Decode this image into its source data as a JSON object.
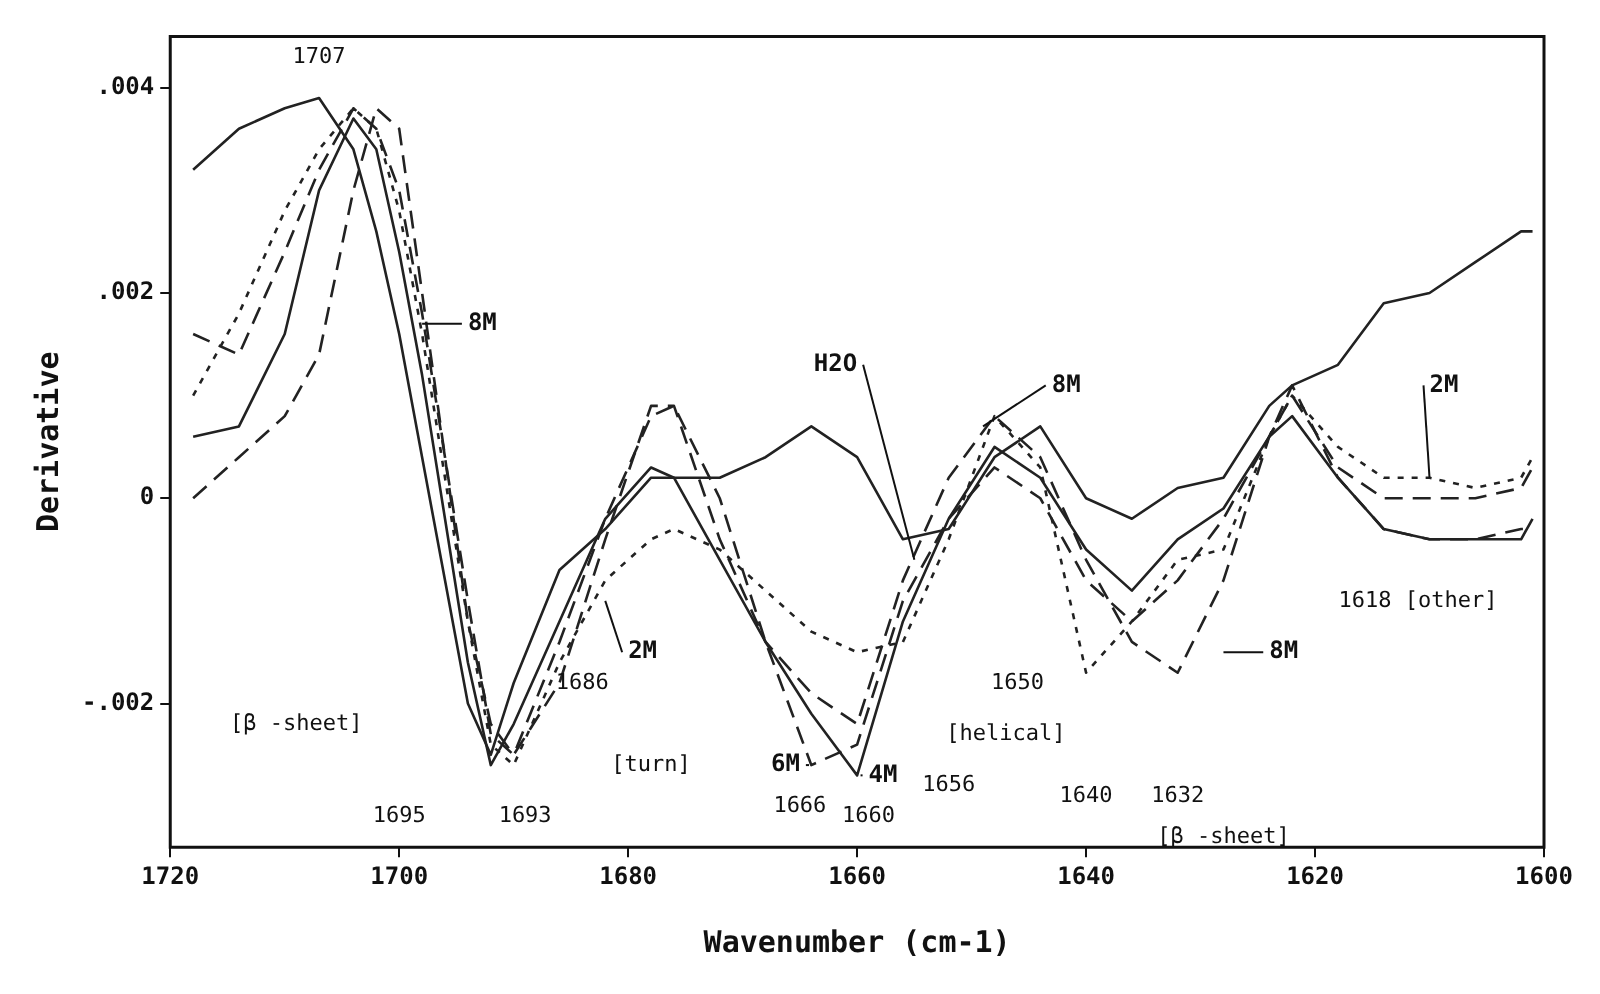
{
  "chart_data": {
    "type": "line",
    "xlabel": "Wavenumber (cm-1)",
    "ylabel": "Derivative",
    "x": [
      1718,
      1714,
      1710,
      1707,
      1704,
      1702,
      1700,
      1698,
      1696,
      1694,
      1692,
      1690,
      1686,
      1682,
      1678,
      1676,
      1672,
      1668,
      1664,
      1660,
      1656,
      1652,
      1648,
      1644,
      1640,
      1636,
      1632,
      1628,
      1624,
      1622,
      1618,
      1614,
      1610,
      1606,
      1602,
      1601
    ],
    "xlim": [
      1720,
      1600
    ],
    "xticks": [
      1720,
      1700,
      1680,
      1660,
      1640,
      1620,
      1600
    ],
    "ylim": [
      -0.0034,
      0.0045
    ],
    "yticks": [
      {
        "value": 0.004,
        "label": ".004"
      },
      {
        "value": 0.002,
        "label": ".002"
      },
      {
        "value": 0,
        "label": "0"
      },
      {
        "value": -0.002,
        "label": "-.002"
      }
    ],
    "grid": false,
    "legend": false,
    "marker": "none",
    "series": [
      {
        "name": "H2O",
        "color": "#222222",
        "line_style": "solid",
        "values": [
          0.0032,
          0.0036,
          0.0038,
          0.0039,
          0.0034,
          0.0026,
          0.0016,
          0.0004,
          -0.0008,
          -0.002,
          -0.0025,
          -0.0018,
          -0.0007,
          -0.0003,
          0.0002,
          0.0002,
          0.0002,
          0.0004,
          0.0007,
          0.0004,
          -0.0004,
          -0.0003,
          0.0004,
          0.0007,
          0.0,
          -0.0002,
          0.0001,
          0.0002,
          0.0009,
          0.0011,
          0.0013,
          0.0019,
          0.002,
          0.0023,
          0.0026,
          0.0026
        ]
      },
      {
        "name": "2M",
        "color": "#222222",
        "line_style": "dotted",
        "values": [
          0.001,
          0.0018,
          0.0028,
          0.0034,
          0.0038,
          0.0036,
          0.0028,
          0.0016,
          0.0002,
          -0.0012,
          -0.0024,
          -0.0026,
          -0.0016,
          -0.0008,
          -0.0004,
          -0.0003,
          -0.0005,
          -0.0009,
          -0.0013,
          -0.0015,
          -0.0014,
          -0.0004,
          0.0008,
          0.0003,
          -0.0017,
          -0.0012,
          -0.0006,
          -0.0005,
          0.0006,
          0.001,
          0.0005,
          0.0002,
          0.0002,
          0.0001,
          0.0002,
          0.0004
        ]
      },
      {
        "name": "4M",
        "color": "#222222",
        "line_style": "solid",
        "values": [
          0.0006,
          0.0007,
          0.0016,
          0.003,
          0.0037,
          0.0034,
          0.0024,
          0.0012,
          -0.0002,
          -0.0016,
          -0.0026,
          -0.0022,
          -0.0012,
          -0.0002,
          0.0003,
          0.0002,
          -0.0006,
          -0.0014,
          -0.0021,
          -0.0027,
          -0.0012,
          -0.0002,
          0.0005,
          0.0002,
          -0.0005,
          -0.0009,
          -0.0004,
          -0.0001,
          0.0006,
          0.0008,
          0.0002,
          -0.0003,
          -0.0004,
          -0.0004,
          -0.0004,
          -0.0002
        ]
      },
      {
        "name": "6M",
        "color": "#222222",
        "line_style": "dashed",
        "values": [
          0.0016,
          0.0014,
          0.0024,
          0.0032,
          0.0038,
          0.0036,
          0.003,
          0.0018,
          0.0004,
          -0.001,
          -0.0023,
          -0.0025,
          -0.0014,
          -0.0002,
          0.0008,
          0.0009,
          0.0,
          -0.0014,
          -0.0026,
          -0.0024,
          -0.001,
          -0.0002,
          0.0003,
          0.0,
          -0.0008,
          -0.0012,
          -0.0008,
          -0.0002,
          0.0006,
          0.001,
          0.0003,
          0.0,
          0.0,
          0.0,
          0.0001,
          0.0003
        ]
      },
      {
        "name": "8M",
        "color": "#222222",
        "line_style": "dashed",
        "values": [
          0.0,
          0.0004,
          0.0008,
          0.0014,
          0.003,
          0.0038,
          0.0036,
          0.002,
          0.0004,
          -0.0012,
          -0.0022,
          -0.0025,
          -0.0018,
          -0.0004,
          0.0009,
          0.0009,
          -0.0004,
          -0.0014,
          -0.0019,
          -0.0022,
          -0.0008,
          0.0002,
          0.0008,
          0.0004,
          -0.0006,
          -0.0014,
          -0.0017,
          -0.0008,
          0.0006,
          0.0011,
          0.0002,
          -0.0003,
          -0.0004,
          -0.0004,
          -0.0003,
          -0.0003
        ]
      }
    ],
    "annotations": [
      "1707",
      "[β -sheet]",
      "1695",
      "1693",
      "1686",
      "[turn]",
      "1666",
      "1660",
      "1656",
      "[helical]",
      "1650",
      "1640",
      "1632",
      "[β -sheet]",
      "1618 [other]"
    ]
  }
}
